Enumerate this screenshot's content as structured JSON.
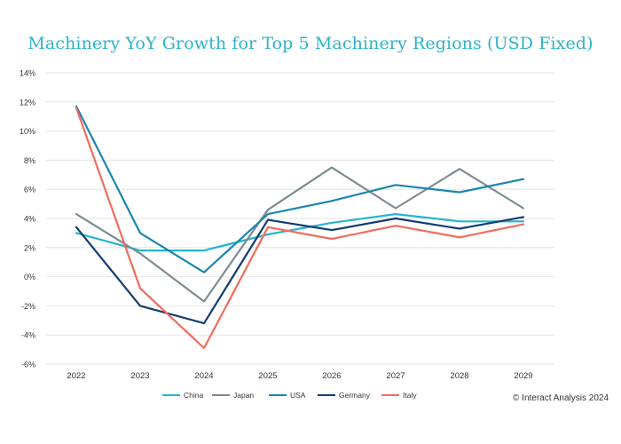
{
  "colors": {
    "China": "#26b5cf",
    "Japan": "#7d8b92",
    "USA": "#1a86b0",
    "Germany": "#123d72",
    "Italy": "#f26b5b",
    "title": "#2bb3c9",
    "grid": "#e4e4e4"
  },
  "chart_data": {
    "type": "line",
    "title": "Machinery YoY Growth for Top 5 Machinery Regions (USD Fixed)",
    "xlabel": "",
    "ylabel": "",
    "ylim": [
      -6,
      14
    ],
    "y_ticks": [
      -6,
      -4,
      -2,
      0,
      2,
      4,
      6,
      8,
      10,
      12,
      14
    ],
    "y_tick_labels": [
      "-6%",
      "-4%",
      "-2%",
      "0%",
      "2%",
      "4%",
      "6%",
      "8%",
      "10%",
      "12%",
      "14%"
    ],
    "categories": [
      "2022",
      "2023",
      "2024",
      "2025",
      "2026",
      "2027",
      "2028",
      "2029"
    ],
    "grid": "horizontal",
    "legend_position": "bottom",
    "series": [
      {
        "name": "China",
        "values": [
          3.0,
          1.8,
          1.8,
          2.9,
          3.7,
          4.3,
          3.8,
          3.8
        ]
      },
      {
        "name": "Japan",
        "values": [
          4.3,
          1.6,
          -1.7,
          4.6,
          7.5,
          4.7,
          7.4,
          4.7
        ]
      },
      {
        "name": "USA",
        "values": [
          11.7,
          3.0,
          0.3,
          4.3,
          5.2,
          6.3,
          5.8,
          6.7
        ]
      },
      {
        "name": "Germany",
        "values": [
          3.4,
          -2.0,
          -3.2,
          3.9,
          3.2,
          4.0,
          3.3,
          4.1
        ]
      },
      {
        "name": "Italy",
        "values": [
          11.6,
          -0.8,
          -4.9,
          3.4,
          2.6,
          3.5,
          2.7,
          3.6
        ]
      }
    ],
    "credit": "© Interact Analysis 2024"
  }
}
